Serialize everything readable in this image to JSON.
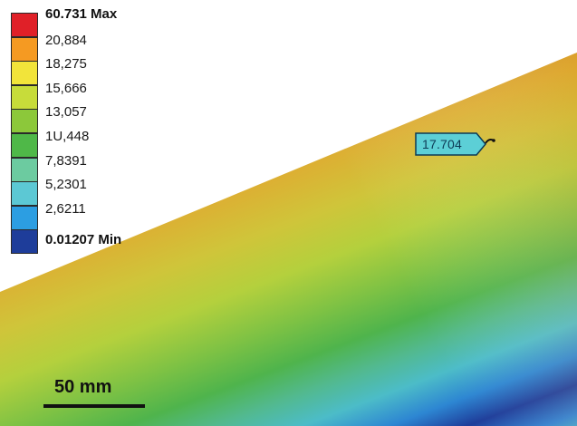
{
  "legend": {
    "entries": [
      {
        "label": "60.731 Max",
        "color": "#e02028",
        "bold": true
      },
      {
        "label": "20,884",
        "color": "#f59a22",
        "bold": false
      },
      {
        "label": "18,275",
        "color": "#f2e43a",
        "bold": false
      },
      {
        "label": "15,666",
        "color": "#c7dc3a",
        "bold": false
      },
      {
        "label": "13,057",
        "color": "#8cc83a",
        "bold": false
      },
      {
        "label": "1U,448",
        "color": "#4fb848",
        "bold": false
      },
      {
        "label": "7,8391",
        "color": "#6ccba0",
        "bold": false
      },
      {
        "label": "5,2301",
        "color": "#5cc8d4",
        "bold": false
      },
      {
        "label": "2,6211",
        "color": "#2c9ee2",
        "bold": false
      },
      {
        "label": "0.01207 Min",
        "color": "#1e3d9a",
        "bold": true
      }
    ]
  },
  "probe": {
    "value": "17.704",
    "fill_color": "#5ccfd6"
  },
  "scale_bar": {
    "label": "50 mm"
  },
  "colors": {
    "max_red": "#e02028",
    "orange": "#f59a22",
    "yellow": "#f2e43a",
    "yellow_green": "#c7dc3a",
    "green": "#4fb848",
    "cyan": "#5cc8d4",
    "blue": "#2c9ee2",
    "min_dark_blue": "#1e3d9a"
  }
}
